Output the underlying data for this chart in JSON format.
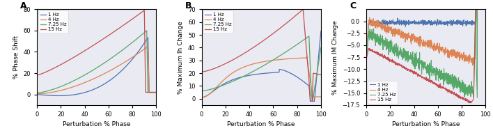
{
  "panel_labels": [
    "A",
    "B",
    "C"
  ],
  "xlabel": "Perturbation % Phase",
  "colors": {
    "1Hz": "#4c72b0",
    "4Hz": "#dd8452",
    "7.25Hz": "#55a868",
    "15Hz": "#c44e52"
  },
  "legend_labels": [
    "1 Hz",
    "4 Hz",
    "7.25 Hz",
    "15 Hz"
  ],
  "panelA": {
    "ylabel": "% Phase Shift",
    "ylim": [
      -10,
      80
    ],
    "yticks": [
      0,
      20,
      40,
      60,
      80
    ]
  },
  "panelB": {
    "ylabel": "% Maximum Ih Change",
    "ylim": [
      -5,
      70
    ],
    "yticks": [
      0,
      10,
      20,
      30,
      40,
      50,
      60,
      70
    ]
  },
  "panelC": {
    "ylabel": "% Maximum IM Change",
    "ylim": [
      -17.5,
      2.5
    ],
    "yticks": [
      0.0,
      -2.5,
      -5.0,
      -7.5,
      -10.0,
      -12.5,
      -15.0,
      -17.5
    ]
  },
  "background_color": "#eaeaf2"
}
